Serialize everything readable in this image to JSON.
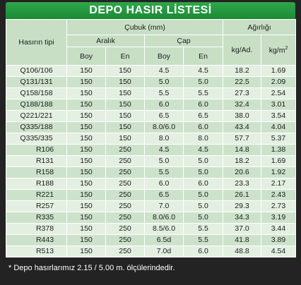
{
  "title": "DEPO HASIR LİSTESİ",
  "headers": {
    "type": "Hasırın tipi",
    "cubuk": "Çubuk (mm)",
    "agirlik": "Ağırlığı",
    "aralik": "Aralık",
    "cap": "Çap",
    "boy": "Boy",
    "en": "En",
    "kg_ad": "kg/Ad.",
    "kg_m": "kg/m",
    "kg_m_sup": "2"
  },
  "rows": [
    [
      "Q106/106",
      "150",
      "150",
      "4.5",
      "4.5",
      "18.2",
      "1.69"
    ],
    [
      "Q131/131",
      "150",
      "150",
      "5.0",
      "5.0",
      "22.5",
      "2.09"
    ],
    [
      "Q158/158",
      "150",
      "150",
      "5.5",
      "5.5",
      "27.3",
      "2.54"
    ],
    [
      "Q188/188",
      "150",
      "150",
      "6.0",
      "6.0",
      "32.4",
      "3.01"
    ],
    [
      "Q221/221",
      "150",
      "150",
      "6.5",
      "6.5",
      "38.0",
      "3.54"
    ],
    [
      "Q335/188",
      "150",
      "150",
      "8.0/6.0",
      "6.0",
      "43.4",
      "4.04"
    ],
    [
      "Q335/335",
      "150",
      "150",
      "8.0",
      "8.0",
      "57.7",
      "5.37"
    ],
    [
      "R106",
      "150",
      "250",
      "4.5",
      "4.5",
      "14.8",
      "1.38"
    ],
    [
      "R131",
      "150",
      "250",
      "5.0",
      "5.0",
      "18.2",
      "1.69"
    ],
    [
      "R158",
      "150",
      "250",
      "5.5",
      "5.0",
      "20.6",
      "1.92"
    ],
    [
      "R188",
      "150",
      "250",
      "6.0",
      "6.0",
      "23.3",
      "2.17"
    ],
    [
      "R221",
      "150",
      "250",
      "6.5",
      "5.0",
      "26.1",
      "2.43"
    ],
    [
      "R257",
      "150",
      "250",
      "7.0",
      "5.0",
      "29.3",
      "2.73"
    ],
    [
      "R335",
      "150",
      "250",
      "8.0/6.0",
      "5.0",
      "34.3",
      "3.19"
    ],
    [
      "R378",
      "150",
      "250",
      "8.5/6.0",
      "5.5",
      "37.0",
      "3.44"
    ],
    [
      "R443",
      "150",
      "250",
      "6.5d",
      "5.5",
      "41.8",
      "3.89"
    ],
    [
      "R513",
      "150",
      "250",
      "7.0d",
      "6.0",
      "48.8",
      "4.54"
    ]
  ],
  "footnote": "* Depo hasırlarımız 2.15 / 5.00 m. ölçülerindedir."
}
